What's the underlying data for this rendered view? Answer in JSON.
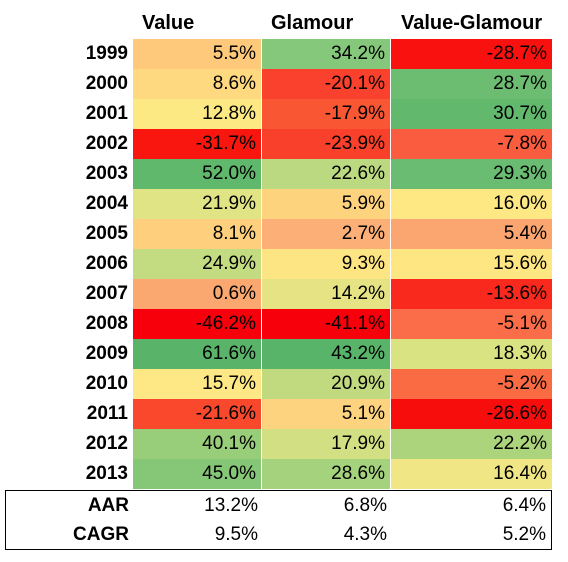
{
  "chart_data": {
    "type": "table",
    "columns": [
      "Value",
      "Glamour",
      "Value-Glamour"
    ],
    "rows": [
      {
        "label": "1999",
        "cells": [
          {
            "text": "5.5%",
            "value": 5.5,
            "color": "#fec97b"
          },
          {
            "text": "34.2%",
            "value": 34.2,
            "color": "#85c87b"
          },
          {
            "text": "-28.7%",
            "value": -28.7,
            "color": "#f8110f"
          }
        ]
      },
      {
        "label": "2000",
        "cells": [
          {
            "text": "8.6%",
            "value": 8.6,
            "color": "#fed97f"
          },
          {
            "text": "-20.1%",
            "value": -20.1,
            "color": "#f9412d"
          },
          {
            "text": "28.7%",
            "value": 28.7,
            "color": "#6cbd72"
          }
        ]
      },
      {
        "label": "2001",
        "cells": [
          {
            "text": "12.8%",
            "value": 12.8,
            "color": "#fde983"
          },
          {
            "text": "-17.9%",
            "value": -17.9,
            "color": "#f95633"
          },
          {
            "text": "30.7%",
            "value": 30.7,
            "color": "#62b96e"
          }
        ]
      },
      {
        "label": "2002",
        "cells": [
          {
            "text": "-31.7%",
            "value": -31.7,
            "color": "#f8160f"
          },
          {
            "text": "-23.9%",
            "value": -23.9,
            "color": "#f9402b"
          },
          {
            "text": "-7.8%",
            "value": -7.8,
            "color": "#f95c3e"
          }
        ]
      },
      {
        "label": "2003",
        "cells": [
          {
            "text": "52.0%",
            "value": 52.0,
            "color": "#60b86c"
          },
          {
            "text": "22.6%",
            "value": 22.6,
            "color": "#bbd980"
          },
          {
            "text": "29.3%",
            "value": 29.3,
            "color": "#69bc71"
          }
        ]
      },
      {
        "label": "2004",
        "cells": [
          {
            "text": "21.9%",
            "value": 21.9,
            "color": "#e0e484"
          },
          {
            "text": "5.9%",
            "value": 5.9,
            "color": "#fdd37e"
          },
          {
            "text": "16.0%",
            "value": 16.0,
            "color": "#fde884"
          }
        ]
      },
      {
        "label": "2005",
        "cells": [
          {
            "text": "8.1%",
            "value": 8.1,
            "color": "#fed07d"
          },
          {
            "text": "2.7%",
            "value": 2.7,
            "color": "#fcaf76"
          },
          {
            "text": "5.4%",
            "value": 5.4,
            "color": "#fba570"
          }
        ]
      },
      {
        "label": "2006",
        "cells": [
          {
            "text": "24.9%",
            "value": 24.9,
            "color": "#c4dc81"
          },
          {
            "text": "9.3%",
            "value": 9.3,
            "color": "#fee583"
          },
          {
            "text": "15.6%",
            "value": 15.6,
            "color": "#fee683"
          }
        ]
      },
      {
        "label": "2007",
        "cells": [
          {
            "text": "0.6%",
            "value": 0.6,
            "color": "#fba870"
          },
          {
            "text": "14.2%",
            "value": 14.2,
            "color": "#e5e383"
          },
          {
            "text": "-13.6%",
            "value": -13.6,
            "color": "#f9291d"
          }
        ]
      },
      {
        "label": "2008",
        "cells": [
          {
            "text": "-46.2%",
            "value": -46.2,
            "color": "#f8000b"
          },
          {
            "text": "-41.1%",
            "value": -41.1,
            "color": "#f8000b"
          },
          {
            "text": "-5.1%",
            "value": -5.1,
            "color": "#fa6d48"
          }
        ]
      },
      {
        "label": "2009",
        "cells": [
          {
            "text": "61.6%",
            "value": 61.6,
            "color": "#59b46a"
          },
          {
            "text": "43.2%",
            "value": 43.2,
            "color": "#58b469"
          },
          {
            "text": "18.3%",
            "value": 18.3,
            "color": "#d9e381"
          }
        ]
      },
      {
        "label": "2010",
        "cells": [
          {
            "text": "15.7%",
            "value": 15.7,
            "color": "#fde885"
          },
          {
            "text": "20.9%",
            "value": 20.9,
            "color": "#c1da80"
          },
          {
            "text": "-5.2%",
            "value": -5.2,
            "color": "#fa6b44"
          }
        ]
      },
      {
        "label": "2011",
        "cells": [
          {
            "text": "-21.6%",
            "value": -21.6,
            "color": "#f9482b"
          },
          {
            "text": "5.1%",
            "value": 5.1,
            "color": "#fdd37f"
          },
          {
            "text": "-26.6%",
            "value": -26.6,
            "color": "#f80d0d"
          }
        ]
      },
      {
        "label": "2012",
        "cells": [
          {
            "text": "40.1%",
            "value": 40.1,
            "color": "#98cd79"
          },
          {
            "text": "17.9%",
            "value": 17.9,
            "color": "#d2df83"
          },
          {
            "text": "22.2%",
            "value": 22.2,
            "color": "#acd47d"
          }
        ]
      },
      {
        "label": "2013",
        "cells": [
          {
            "text": "45.0%",
            "value": 45.0,
            "color": "#85c677"
          },
          {
            "text": "28.6%",
            "value": 28.6,
            "color": "#a4d27d"
          },
          {
            "text": "16.4%",
            "value": 16.4,
            "color": "#f1e685"
          }
        ]
      }
    ],
    "summary_rows": [
      {
        "label": "AAR",
        "cells": [
          "13.2%",
          "6.8%",
          "6.4%"
        ],
        "values": [
          13.2,
          6.8,
          6.4
        ]
      },
      {
        "label": "CAGR",
        "cells": [
          "9.5%",
          "4.3%",
          "5.2%"
        ],
        "values": [
          9.5,
          4.3,
          5.2
        ]
      }
    ]
  }
}
